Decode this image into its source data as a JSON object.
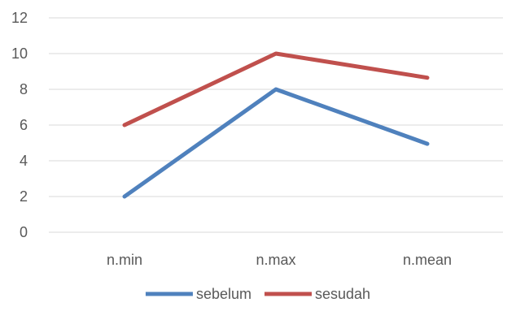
{
  "chart_data": {
    "type": "line",
    "title": "",
    "xlabel": "",
    "ylabel": "",
    "categories": [
      "n.min",
      "n.max",
      "n.mean"
    ],
    "ylim": [
      0,
      12
    ],
    "yticks": [
      0,
      2,
      4,
      6,
      8,
      10,
      12
    ],
    "grid": true,
    "legend_position": "bottom",
    "series": [
      {
        "name": "sebelum",
        "color": "#4f81bd",
        "values": [
          2,
          8,
          4.95
        ]
      },
      {
        "name": "sesudah",
        "color": "#c0504d",
        "values": [
          6,
          10,
          8.65
        ]
      }
    ]
  }
}
